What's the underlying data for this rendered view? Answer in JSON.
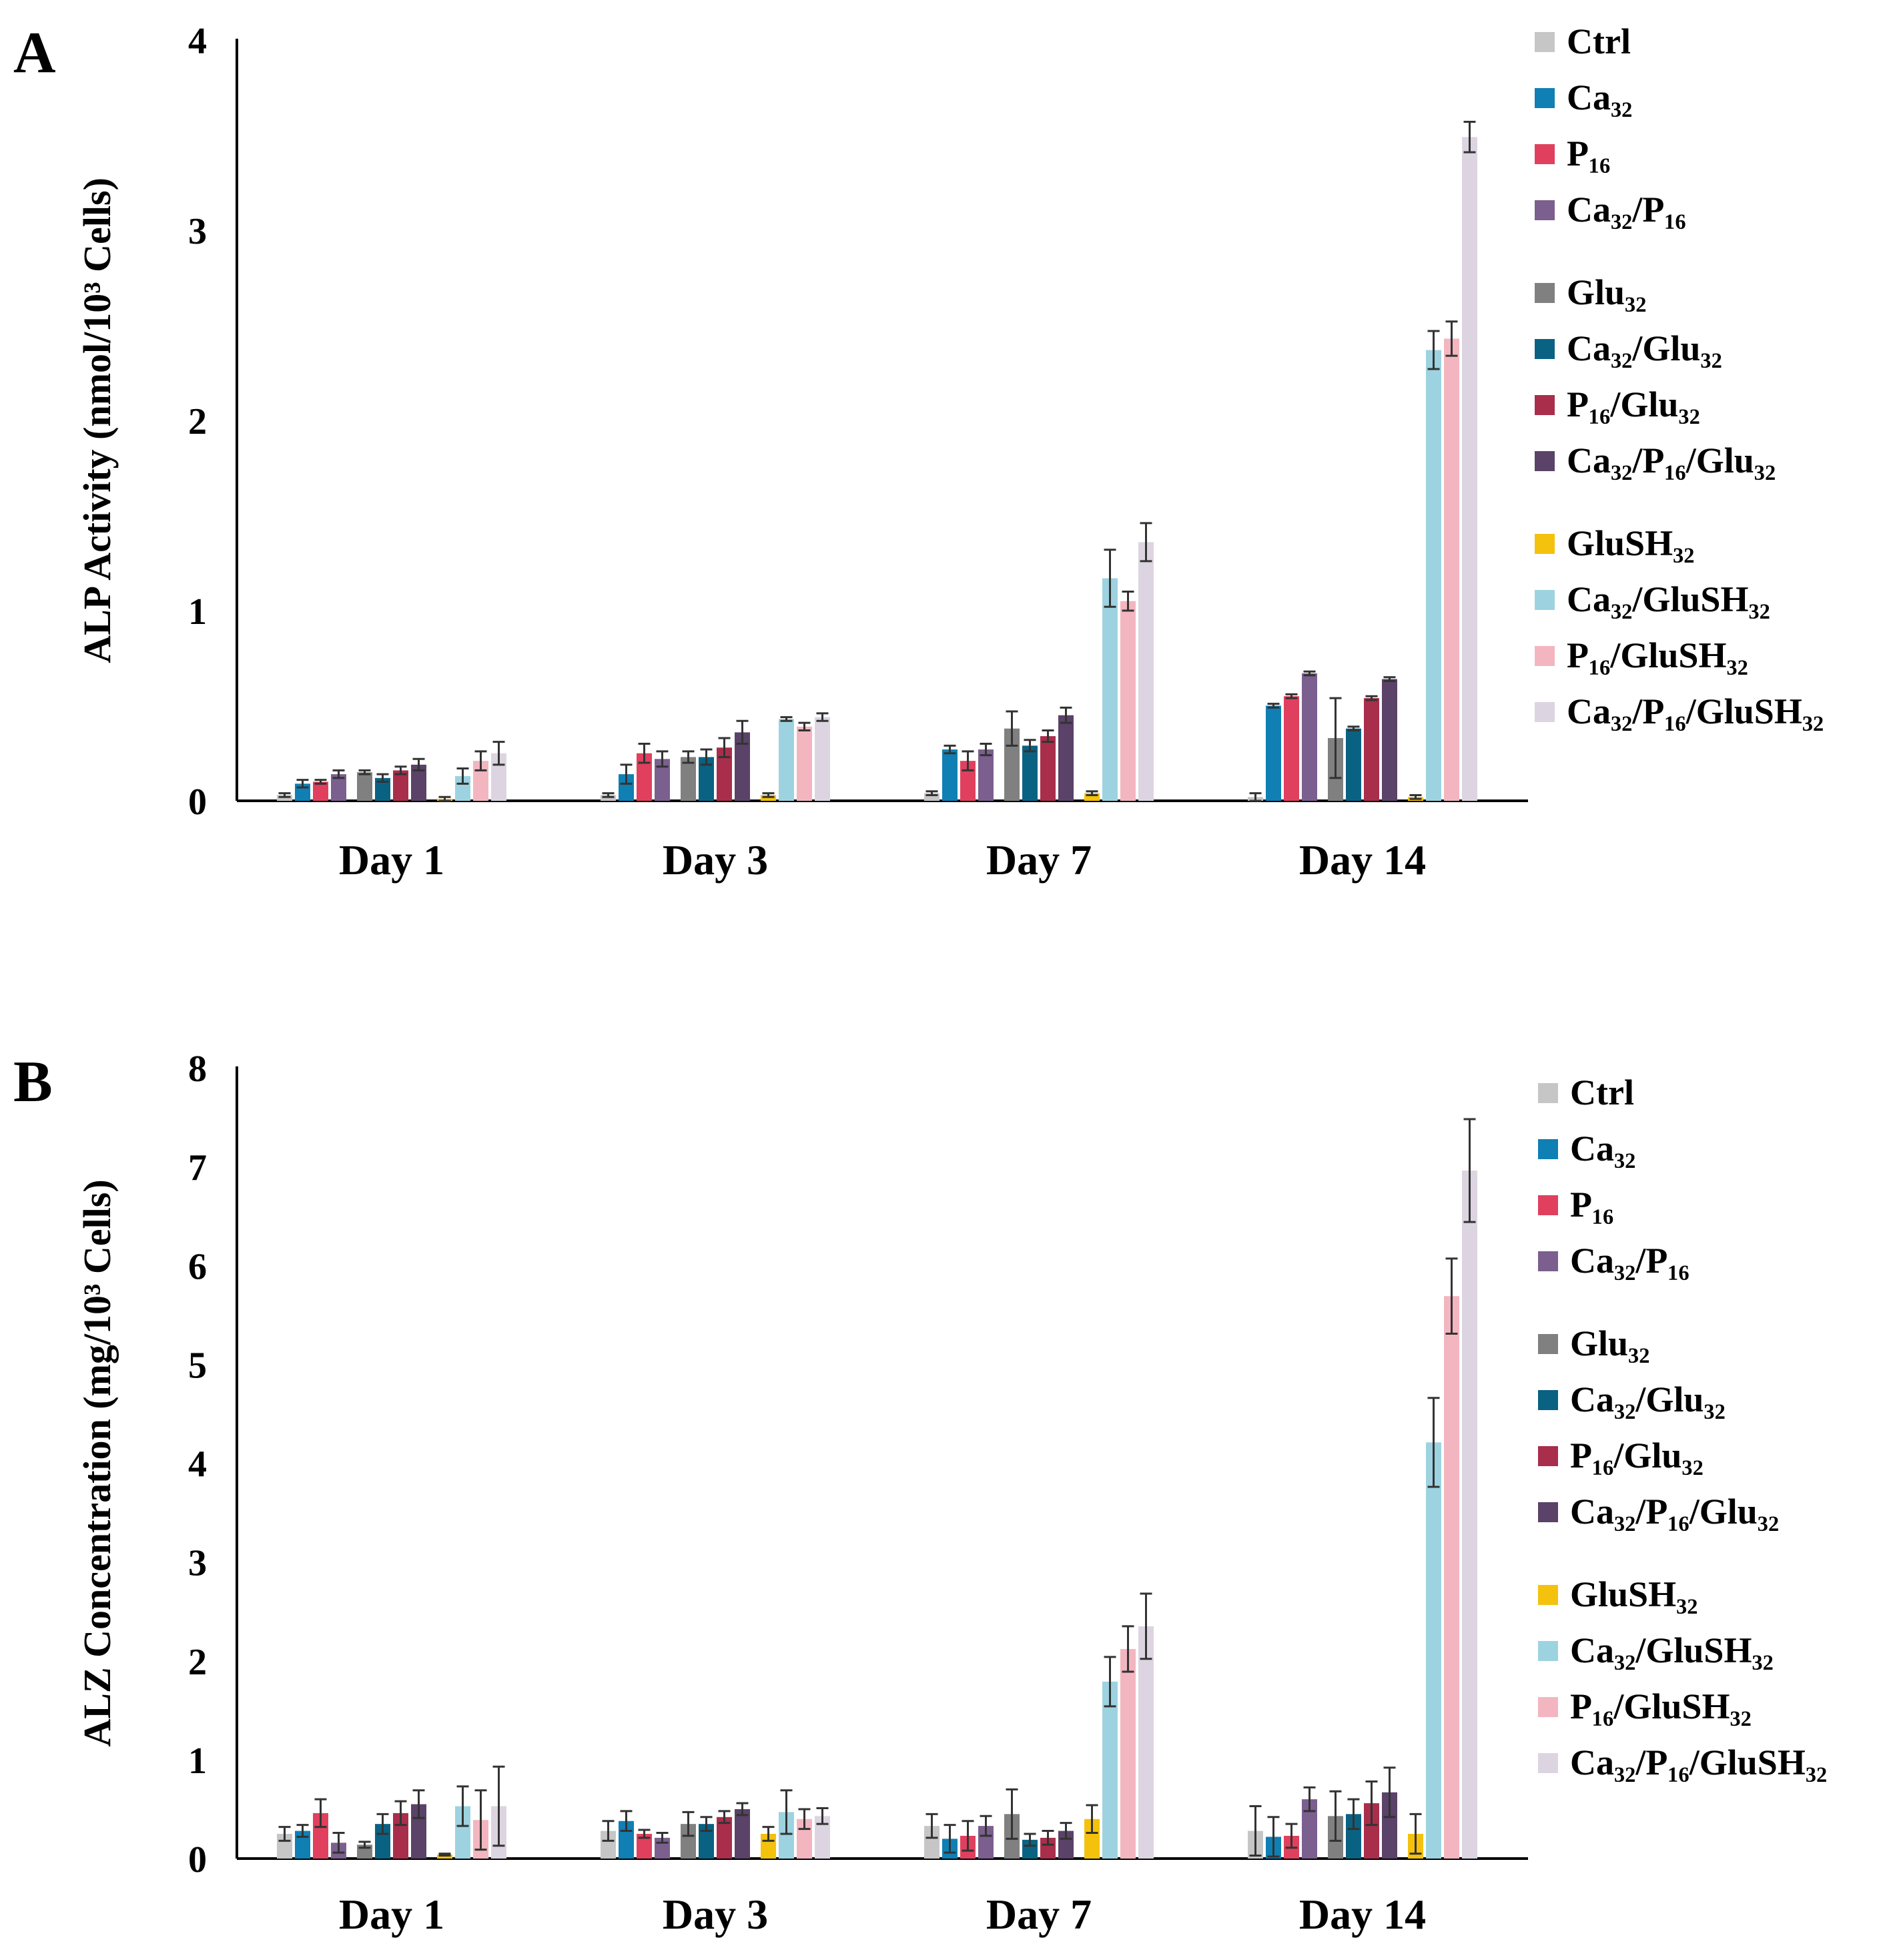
{
  "chart_data": [
    {
      "panel": "A",
      "type": "bar",
      "title": "",
      "xlabel": "",
      "ylabel": "ALP Activity (nmol/10³ Cells)",
      "ylim": [
        0,
        4
      ],
      "yticks": [
        0,
        1,
        2,
        3,
        4
      ],
      "categories": [
        "Day 1",
        "Day 3",
        "Day 7",
        "Day 14"
      ],
      "series": [
        {
          "name": "Ctrl",
          "color": "#c6c6c6",
          "values": [
            0.03,
            0.03,
            0.04,
            0.02
          ],
          "errors": [
            0.01,
            0.01,
            0.01,
            0.02
          ]
        },
        {
          "name": "Ca₃₂",
          "color": "#0f7fb4",
          "values": [
            0.09,
            0.14,
            0.27,
            0.5
          ],
          "errors": [
            0.02,
            0.05,
            0.02,
            0.01
          ]
        },
        {
          "name": "P₁₆",
          "color": "#e0405e",
          "values": [
            0.1,
            0.25,
            0.21,
            0.55
          ],
          "errors": [
            0.01,
            0.05,
            0.05,
            0.01
          ]
        },
        {
          "name": "Ca₃₂/P₁₆",
          "color": "#7b5f8f",
          "values": [
            0.14,
            0.22,
            0.27,
            0.67
          ],
          "errors": [
            0.02,
            0.04,
            0.03,
            0.01
          ]
        },
        {
          "name": "Glu₃₂",
          "color": "#808080",
          "values": [
            0.15,
            0.23,
            0.38,
            0.33
          ],
          "errors": [
            0.01,
            0.03,
            0.09,
            0.21
          ]
        },
        {
          "name": "Ca₃₂/Glu₃₂",
          "color": "#0a6283",
          "values": [
            0.12,
            0.23,
            0.29,
            0.38
          ],
          "errors": [
            0.02,
            0.04,
            0.03,
            0.01
          ]
        },
        {
          "name": "P₁₆/Glu₃₂",
          "color": "#a92e4b",
          "values": [
            0.16,
            0.28,
            0.34,
            0.54
          ],
          "errors": [
            0.02,
            0.05,
            0.03,
            0.01
          ]
        },
        {
          "name": "Ca₃₂/P₁₆/Glu₃₂",
          "color": "#5a4268",
          "values": [
            0.19,
            0.36,
            0.45,
            0.64
          ],
          "errors": [
            0.03,
            0.06,
            0.04,
            0.01
          ]
        },
        {
          "name": "GluSH₃₂",
          "color": "#f4c20d",
          "values": [
            0.01,
            0.03,
            0.04,
            0.02
          ],
          "errors": [
            0.01,
            0.01,
            0.01,
            0.01
          ]
        },
        {
          "name": "Ca₃₂/GluSH₃₂",
          "color": "#9dd3e0",
          "values": [
            0.13,
            0.43,
            1.17,
            2.37
          ],
          "errors": [
            0.04,
            0.01,
            0.15,
            0.1
          ]
        },
        {
          "name": "P₁₆/GluSH₃₂",
          "color": "#f3b6c0",
          "values": [
            0.21,
            0.39,
            1.05,
            2.43
          ],
          "errors": [
            0.05,
            0.02,
            0.05,
            0.09
          ]
        },
        {
          "name": "Ca₃₂/P₁₆/GluSH₃₂",
          "color": "#dcd5e1",
          "values": [
            0.25,
            0.44,
            1.36,
            3.49
          ],
          "errors": [
            0.06,
            0.02,
            0.1,
            0.08
          ]
        }
      ]
    },
    {
      "panel": "B",
      "type": "bar",
      "title": "",
      "xlabel": "",
      "ylabel": "ALZ Concentration (mg/10³ Cells)",
      "ylim": [
        0,
        8
      ],
      "yticks": [
        0,
        1,
        2,
        3,
        4,
        5,
        6,
        7,
        8
      ],
      "categories": [
        "Day 1",
        "Day 3",
        "Day 7",
        "Day 14"
      ],
      "series": [
        {
          "name": "Ctrl",
          "color": "#c6c6c6",
          "values": [
            0.25,
            0.28,
            0.33,
            0.28
          ],
          "errors": [
            0.07,
            0.1,
            0.12,
            0.25
          ]
        },
        {
          "name": "Ca₃₂",
          "color": "#0f7fb4",
          "values": [
            0.28,
            0.38,
            0.2,
            0.22
          ],
          "errors": [
            0.06,
            0.1,
            0.14,
            0.2
          ]
        },
        {
          "name": "P₁₆",
          "color": "#e0405e",
          "values": [
            0.46,
            0.25,
            0.23,
            0.23
          ],
          "errors": [
            0.14,
            0.04,
            0.15,
            0.12
          ]
        },
        {
          "name": "Ca₃₂/P₁₆",
          "color": "#7b5f8f",
          "values": [
            0.16,
            0.21,
            0.33,
            0.6
          ],
          "errors": [
            0.1,
            0.05,
            0.1,
            0.12
          ]
        },
        {
          "name": "Glu₃₂",
          "color": "#808080",
          "values": [
            0.14,
            0.35,
            0.45,
            0.43
          ],
          "errors": [
            0.03,
            0.12,
            0.25,
            0.25
          ]
        },
        {
          "name": "Ca₃₂/Glu₃₂",
          "color": "#0a6283",
          "values": [
            0.35,
            0.35,
            0.19,
            0.45
          ],
          "errors": [
            0.1,
            0.07,
            0.06,
            0.15
          ]
        },
        {
          "name": "P₁₆/Glu₃₂",
          "color": "#a92e4b",
          "values": [
            0.46,
            0.42,
            0.21,
            0.56
          ],
          "errors": [
            0.12,
            0.06,
            0.07,
            0.22
          ]
        },
        {
          "name": "Ca₃₂/P₁₆/Glu₃₂",
          "color": "#5a4268",
          "values": [
            0.55,
            0.5,
            0.28,
            0.67
          ],
          "errors": [
            0.14,
            0.06,
            0.08,
            0.25
          ]
        },
        {
          "name": "GluSH₃₂",
          "color": "#f4c20d",
          "values": [
            0.04,
            0.25,
            0.4,
            0.25
          ],
          "errors": [
            0.01,
            0.07,
            0.14,
            0.2
          ]
        },
        {
          "name": "Ca₃₂/GluSH₃₂",
          "color": "#9dd3e0",
          "values": [
            0.53,
            0.47,
            1.79,
            4.21
          ],
          "errors": [
            0.2,
            0.22,
            0.25,
            0.45
          ]
        },
        {
          "name": "P₁₆/GluSH₃₂",
          "color": "#f3b6c0",
          "values": [
            0.39,
            0.4,
            2.12,
            5.69
          ],
          "errors": [
            0.3,
            0.1,
            0.23,
            0.38
          ]
        },
        {
          "name": "Ca₃₂/P₁₆/GluSH₃₂",
          "color": "#dcd5e1",
          "values": [
            0.53,
            0.43,
            2.35,
            6.96
          ],
          "errors": [
            0.4,
            0.08,
            0.33,
            0.52
          ]
        }
      ]
    }
  ]
}
